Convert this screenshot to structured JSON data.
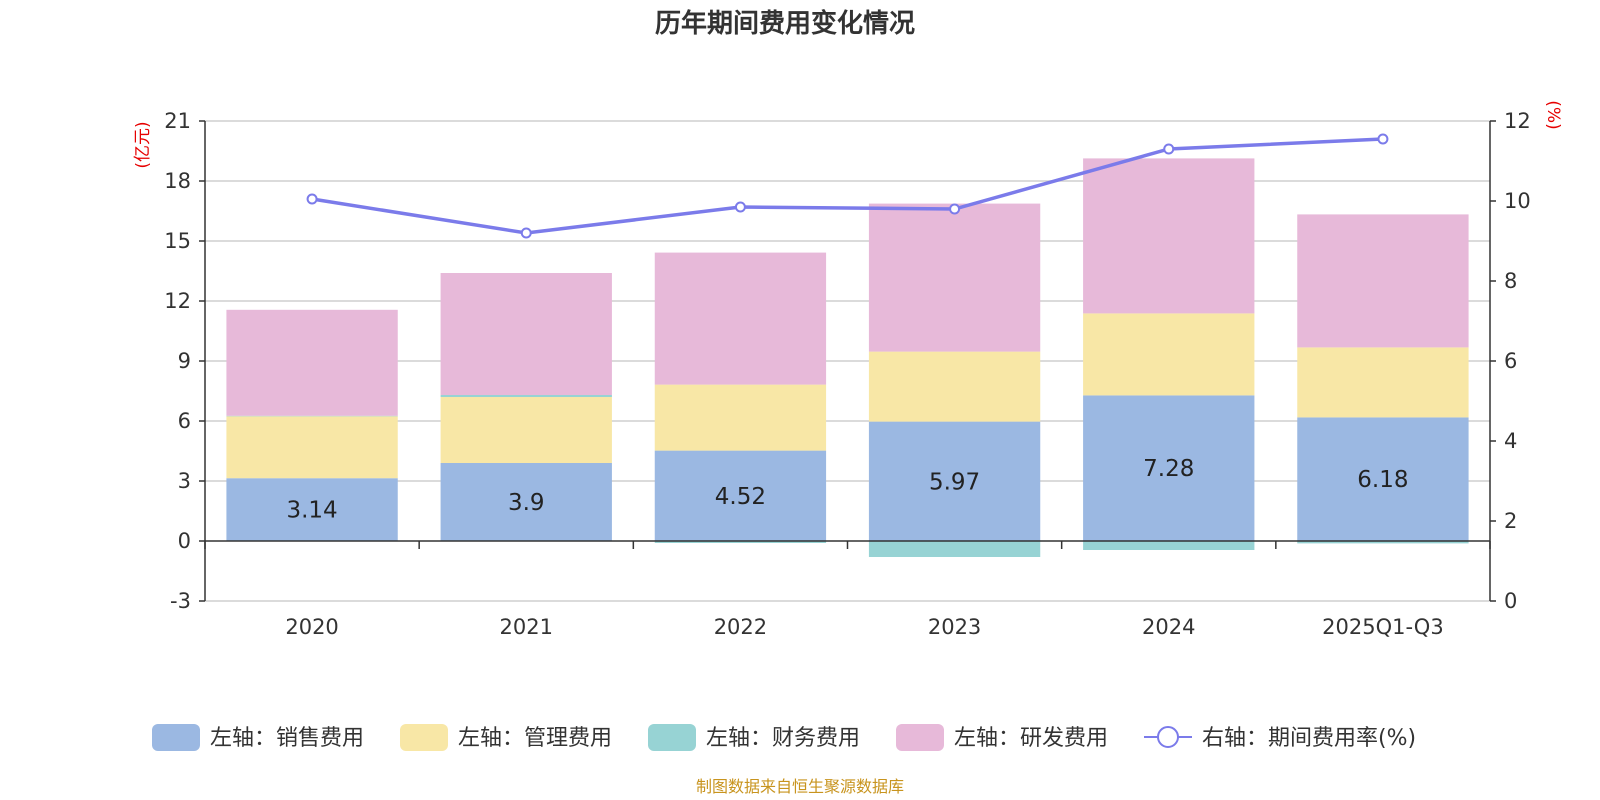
{
  "chart_data": {
    "type": "bar",
    "title": "历年期间费用变化情况",
    "categories": [
      "2020",
      "2021",
      "2022",
      "2023",
      "2024",
      "2025Q1-Q3"
    ],
    "left_axis": {
      "unit": "(亿元)",
      "ylim": [
        -3,
        21
      ],
      "ticks": [
        -3,
        0,
        3,
        6,
        9,
        12,
        15,
        18,
        21
      ]
    },
    "right_axis": {
      "unit": "(%)",
      "ylim": [
        0,
        12
      ],
      "ticks": [
        0,
        2,
        4,
        6,
        8,
        10,
        12
      ]
    },
    "series": [
      {
        "name": "左轴：销售费用",
        "color": "#9bb8e2",
        "values": [
          3.14,
          3.9,
          4.52,
          5.97,
          7.28,
          6.18
        ],
        "show_labels": true
      },
      {
        "name": "左轴：管理费用",
        "color": "#f8e7a6",
        "values": [
          3.1,
          3.3,
          3.3,
          3.5,
          4.1,
          3.5
        ],
        "show_labels": false
      },
      {
        "name": "左轴：财务费用",
        "color": "#97d3d4",
        "values": [
          0.02,
          0.1,
          -0.1,
          -0.8,
          -0.45,
          -0.12
        ],
        "show_labels": false
      },
      {
        "name": "左轴：研发费用",
        "color": "#e7b9d9",
        "values": [
          5.3,
          6.1,
          6.6,
          7.4,
          7.75,
          6.65
        ],
        "show_labels": false
      }
    ],
    "line": {
      "name": "右轴：期间费用率(%)",
      "color": "#7b7bea",
      "axis": "right",
      "values": [
        10.05,
        9.2,
        9.85,
        9.8,
        11.3,
        11.55
      ]
    },
    "grid": true,
    "legend_position": "bottom"
  },
  "footer": {
    "source": "制图数据来自恒生聚源数据库"
  }
}
